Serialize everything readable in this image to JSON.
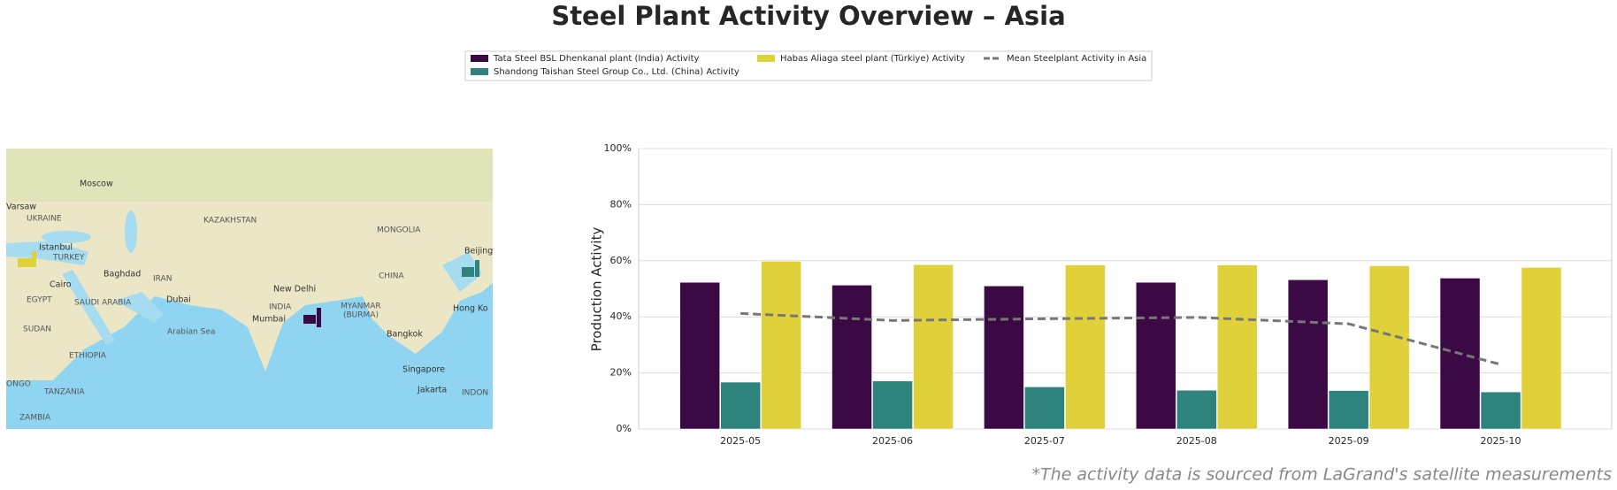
{
  "chart_data": {
    "type": "bar",
    "title": "Steel Plant Activity Overview – Asia",
    "ylabel": "Production Activity",
    "footnote": "*The activity data is sourced from LaGrand's satellite measurements",
    "categories": [
      "2025-05",
      "2025-06",
      "2025-07",
      "2025-08",
      "2025-09",
      "2025-10"
    ],
    "series": [
      {
        "name": "Tata Steel BSL Dhenkanal plant (India) Activity",
        "color": "#3b0a45",
        "values": [
          52.3,
          51.3,
          51.0,
          52.3,
          53.2,
          53.8
        ]
      },
      {
        "name": "Shandong Taishan Steel Group Co., Ltd. (China) Activity",
        "color": "#2e837d",
        "values": [
          16.7,
          17.1,
          15.0,
          13.8,
          13.7,
          13.2
        ]
      },
      {
        "name": "Habas Aliaga steel plant (Türkiye) Activity",
        "color": "#e0d13b",
        "values": [
          59.8,
          58.6,
          58.5,
          58.5,
          58.2,
          57.6
        ]
      },
      {
        "name": "Mean Steelplant Activity in Asia",
        "color": "#777777",
        "type": "line",
        "dashed": true,
        "values": [
          41.2,
          38.7,
          39.3,
          39.8,
          37.5,
          23.0
        ]
      }
    ],
    "ylim": [
      0,
      100
    ],
    "yticks": [
      {
        "value": 0,
        "label": "0%"
      },
      {
        "value": 20,
        "label": "20%"
      },
      {
        "value": 40,
        "label": "40%"
      },
      {
        "value": 60,
        "label": "60%"
      },
      {
        "value": 80,
        "label": "80%"
      },
      {
        "value": 100,
        "label": "100%"
      }
    ],
    "grid": true,
    "legend": "upper center"
  },
  "map": {
    "labels": [
      "Moscow",
      "UKRAINE",
      "Varsaw",
      "KAZAKHSTAN",
      "MONGOLIA",
      "Istanbul",
      "TURKEY",
      "Baghdad",
      "IRAN",
      "Cairo",
      "EGYPT",
      "SAUDI ARABIA",
      "Dubai",
      "New Delhi",
      "INDIA",
      "Mumbai",
      "Arabian Sea",
      "MYANMAR",
      "(BURMA)",
      "CHINA",
      "Beijing",
      "Hong Ko",
      "Bangkok",
      "Singapore",
      "Jakarta",
      "SUDAN",
      "ETHIOPIA",
      "TANZANIA",
      "ZAMBIA",
      "ONGO",
      "INDON"
    ]
  }
}
